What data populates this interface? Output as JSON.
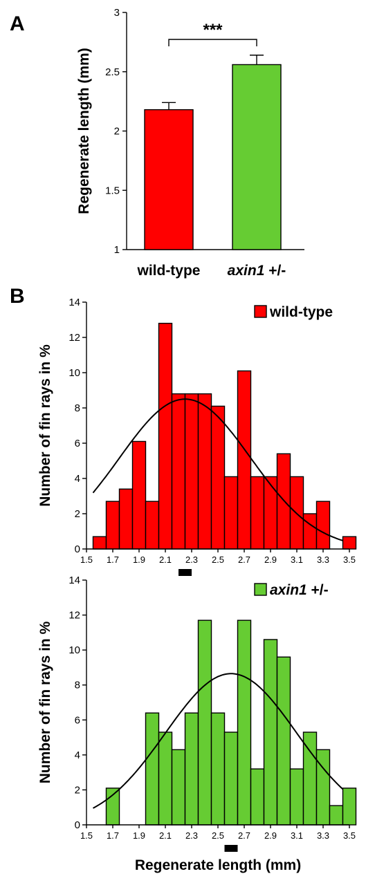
{
  "panels": {
    "A": "A",
    "B": "B"
  },
  "chart_data": [
    {
      "type": "bar",
      "panel": "A",
      "categories": [
        "wild-type",
        "axin1 +/-"
      ],
      "category_parts": [
        {
          "italic": "",
          "rest": "wild-type"
        },
        {
          "italic": "axin1",
          "rest": " +/-"
        }
      ],
      "values": [
        2.18,
        2.56
      ],
      "errors": [
        0.06,
        0.08
      ],
      "colors": [
        "#ff0000",
        "#66cc33"
      ],
      "ylabel": "Regenerate length (mm)",
      "ylim": [
        1,
        3
      ],
      "yticks": [
        "1",
        "1.5",
        "2",
        "2.5",
        "3"
      ],
      "significance": "***",
      "grid": false
    },
    {
      "type": "bar",
      "panel": "B",
      "subtype": "histogram",
      "series_name": "wild-type",
      "legend_parts": {
        "italic": "",
        "rest": "wild-type"
      },
      "legend_position": "top-right",
      "color": "#ff0000",
      "bin_width": 0.1,
      "x": [
        1.5,
        1.6,
        1.7,
        1.8,
        1.9,
        2.0,
        2.1,
        2.2,
        2.3,
        2.4,
        2.5,
        2.6,
        2.7,
        2.8,
        2.9,
        3.0,
        3.1,
        3.2,
        3.3,
        3.4
      ],
      "values": [
        0.7,
        2.7,
        3.4,
        6.1,
        2.7,
        12.8,
        8.8,
        8.8,
        8.8,
        8.1,
        4.1,
        10.1,
        4.1,
        4.1,
        5.4,
        4.1,
        2.0,
        2.7,
        0.0,
        0.7
      ],
      "fit_curve": {
        "type": "normal",
        "mean": 2.25,
        "peak": 8.5,
        "sd": 0.5
      },
      "mean_marker": [
        2.2,
        2.3
      ],
      "ylabel": "Number of fin rays in %",
      "xlim": [
        1.5,
        3.5
      ],
      "ylim": [
        0,
        14
      ],
      "xticks": [
        "1.5",
        "1.7",
        "1.9",
        "2.1",
        "2.3",
        "2.5",
        "2.7",
        "2.9",
        "3.1",
        "3.3",
        "3.5"
      ],
      "yticks": [
        "0",
        "2",
        "4",
        "6",
        "8",
        "10",
        "12",
        "14"
      ],
      "grid": false
    },
    {
      "type": "bar",
      "panel": "B",
      "subtype": "histogram",
      "series_name": "axin1 +/-",
      "legend_parts": {
        "italic": "axin1",
        "rest": " +/-"
      },
      "legend_position": "top-right",
      "color": "#66cc33",
      "bin_width": 0.1,
      "x": [
        1.5,
        1.6,
        1.7,
        1.8,
        1.9,
        2.0,
        2.1,
        2.2,
        2.3,
        2.4,
        2.5,
        2.6,
        2.7,
        2.8,
        2.9,
        3.0,
        3.1,
        3.2,
        3.3,
        3.4
      ],
      "values": [
        0.0,
        2.1,
        0.0,
        0.0,
        6.4,
        5.3,
        4.3,
        6.4,
        11.7,
        6.4,
        5.3,
        11.7,
        3.2,
        10.6,
        9.6,
        3.2,
        5.3,
        4.3,
        1.1,
        2.1
      ],
      "fit_curve": {
        "type": "normal",
        "mean": 2.6,
        "peak": 8.65,
        "sd": 0.5
      },
      "mean_marker": [
        2.55,
        2.65
      ],
      "ylabel": "Number of fin rays in %",
      "xlabel": "Regenerate length (mm)",
      "xlim": [
        1.5,
        3.5
      ],
      "ylim": [
        0,
        14
      ],
      "xticks": [
        "1.5",
        "1.7",
        "1.9",
        "2.1",
        "2.3",
        "2.5",
        "2.7",
        "2.9",
        "3.1",
        "3.3",
        "3.5"
      ],
      "yticks": [
        "0",
        "2",
        "4",
        "6",
        "8",
        "10",
        "12",
        "14"
      ],
      "grid": false
    }
  ]
}
